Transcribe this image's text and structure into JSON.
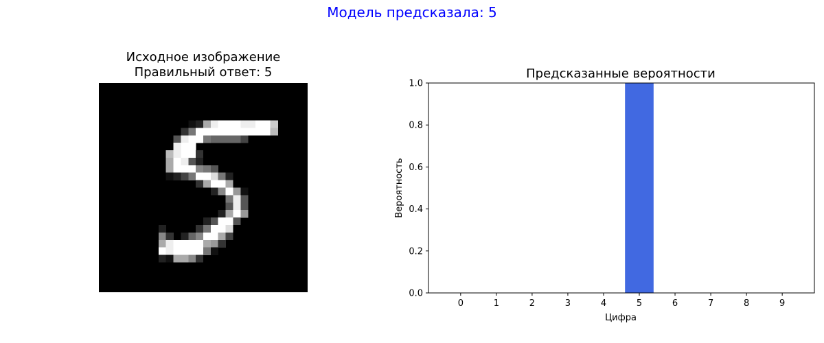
{
  "suptitle": "Модель предсказала: 5",
  "image_panel": {
    "title_line1": "Исходное изображение",
    "title_line2": "Правильный ответ: 5",
    "pixels": [
      "0000000000000000000000000000",
      "0000000000000000000000000000",
      "0000000000000000000000000000",
      "0000000000000000000000000000",
      "0000000000000000000000000000",
      "00000000000012AEFFFEEFFC0000",
      "0000000000037FFFFFFFFFFB0000",
      "00000000005EFF7666640000",
      "0000000000EFF0000000000000000",
      "000000000BEFF3000000000000000",
      "000000000AFE52000000000000000",
      "000000000AFFF8750000000000000",
      "0000000001247FFD7200000000000",
      "00000000000003AFFA00000000000",
      "00000000000000028F91000000000",
      "000000000000000007E500000000",
      "000000000000000005E500000000",
      "00000000000000002AF900000000",
      "0000000000000025FF5000000000",
      "000000002000037FFD0000000000",
      "00000000830268FFA40000000000",
      "00000000AEFFFFA930000000000",
      "00000000FEFFFF71000000000000",
      "0000000021AA8300000000000000",
      "0000000000000000000000000000",
      "0000000000000000000000000000",
      "0000000000000000000000000000",
      "0000000000000000000000000000"
    ]
  },
  "chart_data": {
    "type": "bar",
    "title": "Предсказанные вероятности",
    "xlabel": "Цифра",
    "ylabel": "Вероятность",
    "categories": [
      "0",
      "1",
      "2",
      "3",
      "4",
      "5",
      "6",
      "7",
      "8",
      "9"
    ],
    "values": [
      0,
      0,
      0,
      0,
      0,
      1.0,
      0,
      0,
      0,
      0
    ],
    "ylim": [
      0,
      1.0
    ],
    "yticks": [
      "0.0",
      "0.2",
      "0.4",
      "0.6",
      "0.8",
      "1.0"
    ],
    "bar_color": "#4169e1",
    "grid": false
  }
}
